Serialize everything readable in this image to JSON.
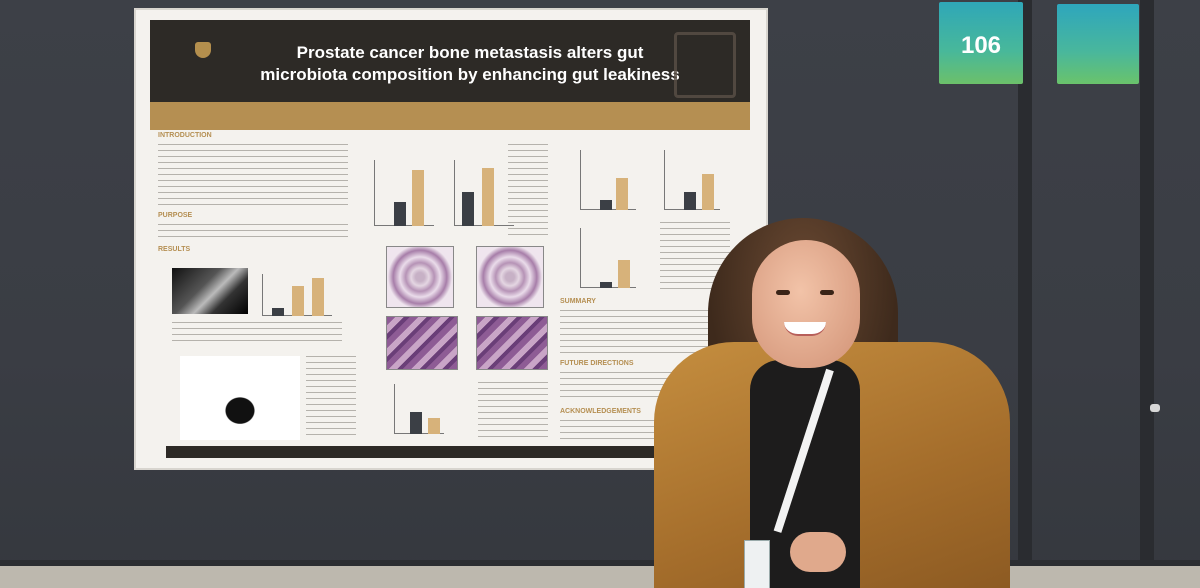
{
  "poster": {
    "title_line1": "Prostate cancer bone metastasis alters gut",
    "title_line2": "microbiota composition by enhancing gut leakiness",
    "sections": {
      "introduction": "INTRODUCTION",
      "purpose": "PURPOSE",
      "results": "RESULTS",
      "summary": "SUMMARY",
      "future": "FUTURE DIRECTIONS",
      "acknowledgements": "ACKNOWLEDGEMENTS"
    }
  },
  "signs": {
    "booth_number": "106"
  },
  "colors": {
    "poster_header": "#2d2a26",
    "poster_accent": "#b58f52",
    "sign_teal": "#2fa7b8",
    "coat": "#b07a32"
  }
}
